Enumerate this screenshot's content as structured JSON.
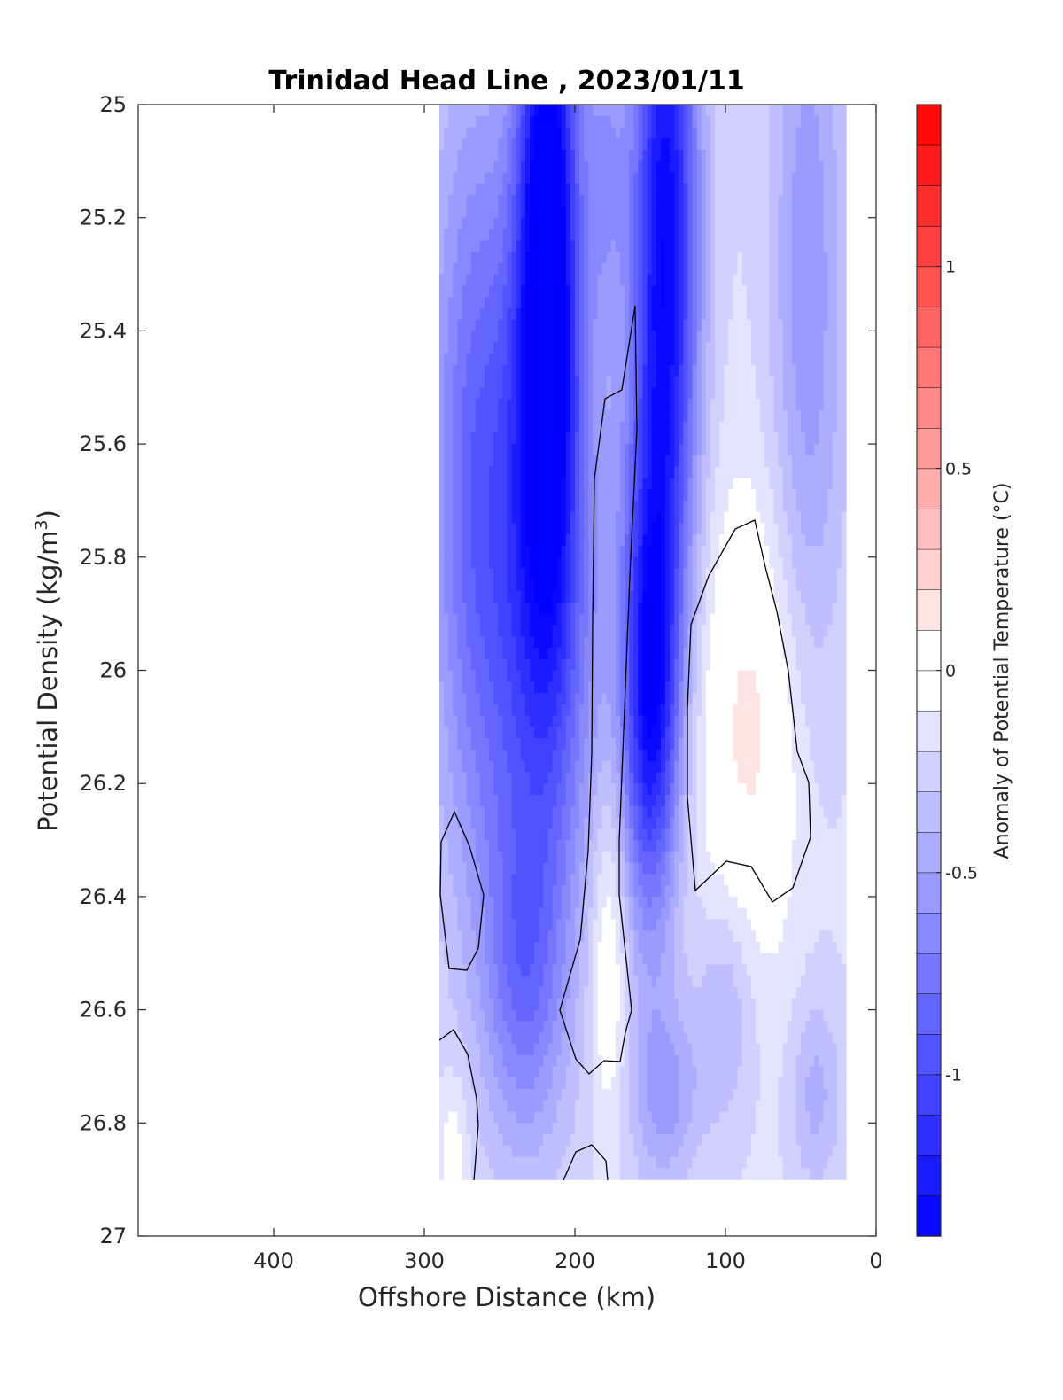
{
  "chart_data": {
    "type": "heatmap",
    "title": "Trinidad Head Line , 2023/01/11",
    "xlabel": "Offshore Distance (km)",
    "ylabel_main": "Potential Density (kg/m",
    "ylabel_sup": "3",
    "ylabel_close": ")",
    "xlim": [
      490,
      0
    ],
    "ylim": [
      27,
      25
    ],
    "x_ticks": [
      400,
      300,
      200,
      100,
      0
    ],
    "y_ticks": [
      25,
      25.2,
      25.4,
      25.6,
      25.8,
      26,
      26.2,
      26.4,
      26.6,
      26.8,
      27
    ],
    "colorbar": {
      "label": "Anomaly of Potential Temperature (°C)",
      "range": [
        -1.4,
        1.4
      ],
      "step": 0.1,
      "ticks": [
        1,
        0.5,
        0,
        -0.5,
        -1
      ],
      "low_color": "#0000ff",
      "high_color": "#ff0000",
      "mid_color": "#ffffff"
    },
    "data_extent": {
      "x_max": 290,
      "x_min": 20,
      "y_min": 25,
      "y_max": 26.9
    },
    "field_features": [
      {
        "type": "cold",
        "x": 218,
        "y": 25.2,
        "sx": 14,
        "sy": 0.5,
        "amp": -1.25
      },
      {
        "type": "cold",
        "x": 225,
        "y": 25.85,
        "sx": 32,
        "sy": 0.5,
        "amp": -0.75
      },
      {
        "type": "cold",
        "x": 140,
        "y": 25.25,
        "sx": 16,
        "sy": 0.5,
        "amp": -1.2
      },
      {
        "type": "cold",
        "x": 150,
        "y": 26.05,
        "sx": 13,
        "sy": 0.28,
        "amp": -1.0
      },
      {
        "type": "cold",
        "x": 270,
        "y": 25.6,
        "sx": 22,
        "sy": 0.5,
        "amp": -0.45
      },
      {
        "type": "cold",
        "x": 45,
        "y": 25.35,
        "sx": 18,
        "sy": 0.55,
        "amp": -0.4
      },
      {
        "type": "cold",
        "x": 180,
        "y": 25.1,
        "sx": 10,
        "sy": 0.18,
        "amp": -0.3
      },
      {
        "type": "cold",
        "x": 235,
        "y": 26.55,
        "sx": 18,
        "sy": 0.2,
        "amp": -0.4
      },
      {
        "type": "cold",
        "x": 140,
        "y": 26.75,
        "sx": 16,
        "sy": 0.12,
        "amp": -0.35
      },
      {
        "type": "cold",
        "x": 100,
        "y": 26.6,
        "sx": 14,
        "sy": 0.15,
        "amp": -0.25
      },
      {
        "type": "cold",
        "x": 40,
        "y": 26.75,
        "sx": 12,
        "sy": 0.12,
        "amp": -0.25
      },
      {
        "type": "warm",
        "x": 82,
        "y": 26.1,
        "sx": 28,
        "sy": 0.3,
        "amp": 0.32
      },
      {
        "type": "warm",
        "x": 178,
        "y": 26.5,
        "sx": 9,
        "sy": 0.22,
        "amp": 0.3
      },
      {
        "type": "warm",
        "x": 280,
        "y": 26.85,
        "sx": 7,
        "sy": 0.1,
        "amp": 0.18
      }
    ]
  }
}
